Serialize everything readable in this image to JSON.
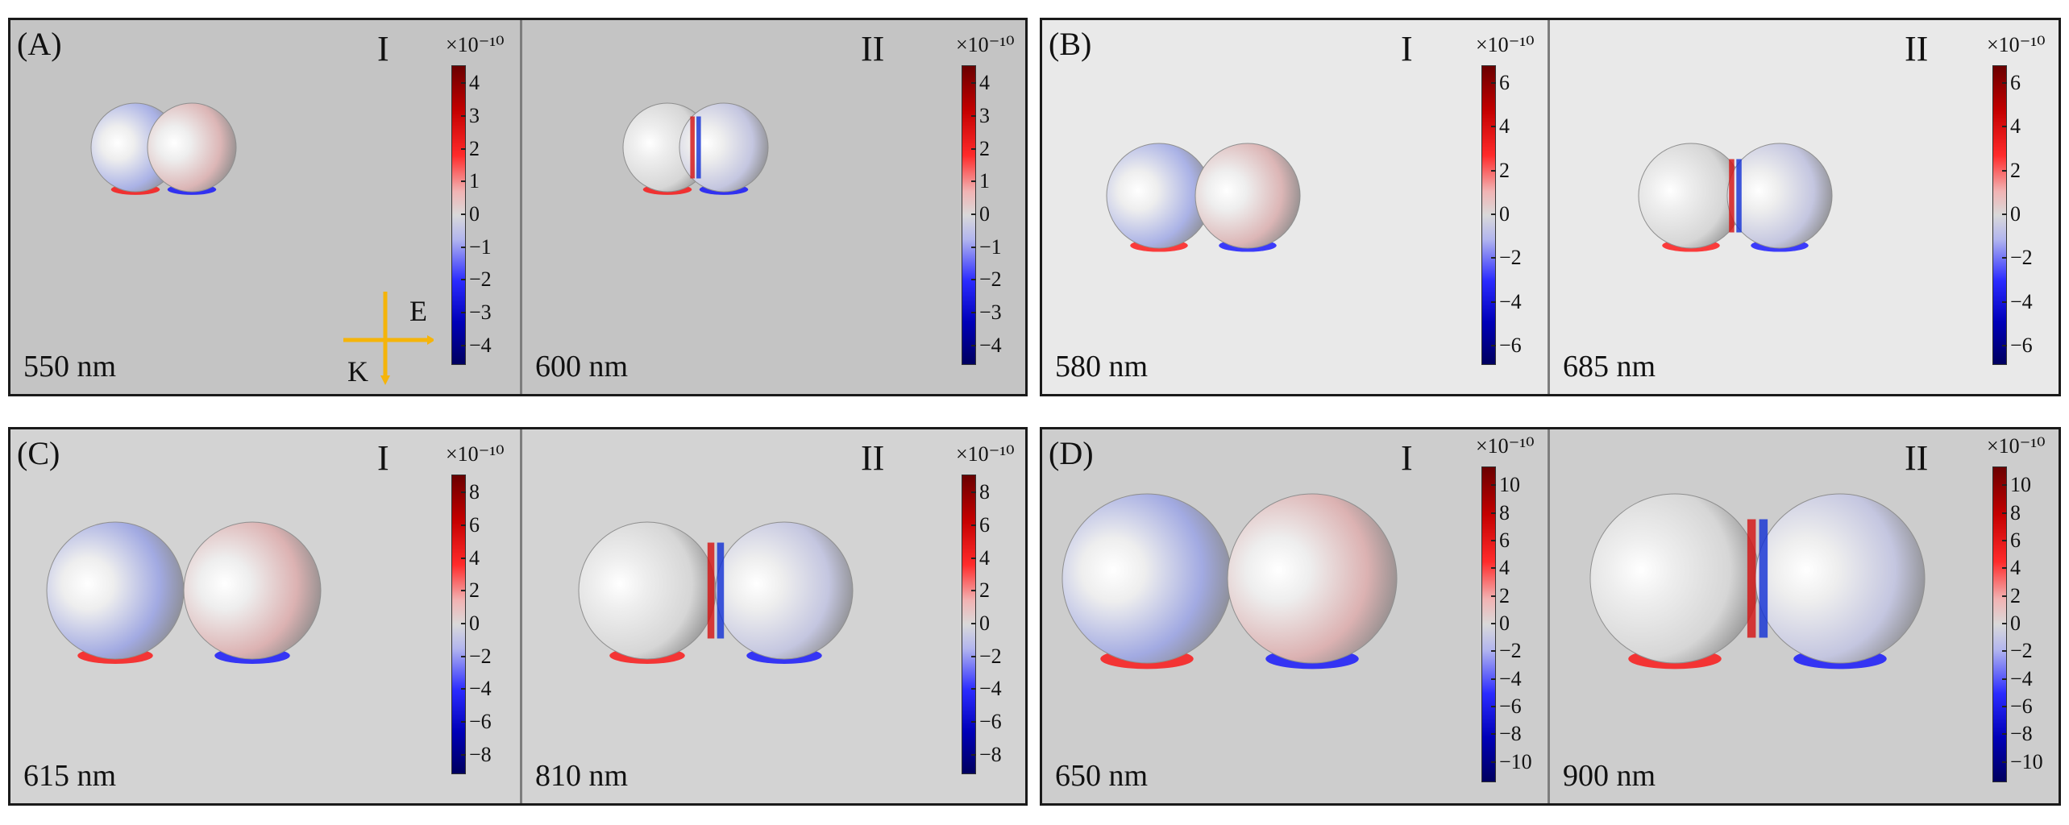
{
  "colorbar_exponent": "×10⁻¹⁰",
  "polarization": {
    "e_label": "E",
    "k_label": "K",
    "arrow_color": "#f5b40a"
  },
  "colorbar_colors": {
    "max": "#6a0000",
    "pos": "#ff2b2b",
    "zero": "#d9d9d9",
    "neg": "#2b2bff",
    "min": "#00005f"
  },
  "panels": [
    {
      "label": "(A)",
      "bg": "#c4c4c4",
      "sub": [
        {
          "roman": "I",
          "wavelength": "550 nm",
          "ticks": [
            "4",
            "3",
            "2",
            "1",
            "0",
            "−1",
            "−2",
            "−3",
            "−4"
          ]
        },
        {
          "roman": "II",
          "wavelength": "600 nm",
          "ticks": [
            "4",
            "3",
            "2",
            "1",
            "0",
            "−1",
            "−2",
            "−3",
            "−4"
          ]
        }
      ]
    },
    {
      "label": "(B)",
      "bg": "#e9e9e9",
      "sub": [
        {
          "roman": "I",
          "wavelength": "580 nm",
          "ticks": [
            "6",
            "4",
            "2",
            "0",
            "−2",
            "−4",
            "−6"
          ]
        },
        {
          "roman": "II",
          "wavelength": "685 nm",
          "ticks": [
            "6",
            "4",
            "2",
            "0",
            "−2",
            "−4",
            "−6"
          ]
        }
      ]
    },
    {
      "label": "(C)",
      "bg": "#d3d3d3",
      "sub": [
        {
          "roman": "I",
          "wavelength": "615 nm",
          "ticks": [
            "8",
            "6",
            "4",
            "2",
            "0",
            "−2",
            "−4",
            "−6",
            "−8"
          ]
        },
        {
          "roman": "II",
          "wavelength": "810 nm",
          "ticks": [
            "8",
            "6",
            "4",
            "2",
            "0",
            "−2",
            "−4",
            "−6",
            "−8"
          ]
        }
      ]
    },
    {
      "label": "(D)",
      "bg": "#cdcdcd",
      "sub": [
        {
          "roman": "I",
          "wavelength": "650 nm",
          "ticks": [
            "10",
            "8",
            "6",
            "4",
            "2",
            "0",
            "−2",
            "−4",
            "−6",
            "−8",
            "−10"
          ]
        },
        {
          "roman": "II",
          "wavelength": "900 nm",
          "ticks": [
            "10",
            "8",
            "6",
            "4",
            "2",
            "0",
            "−2",
            "−4",
            "−6",
            "−8",
            "−10"
          ]
        }
      ]
    }
  ]
}
